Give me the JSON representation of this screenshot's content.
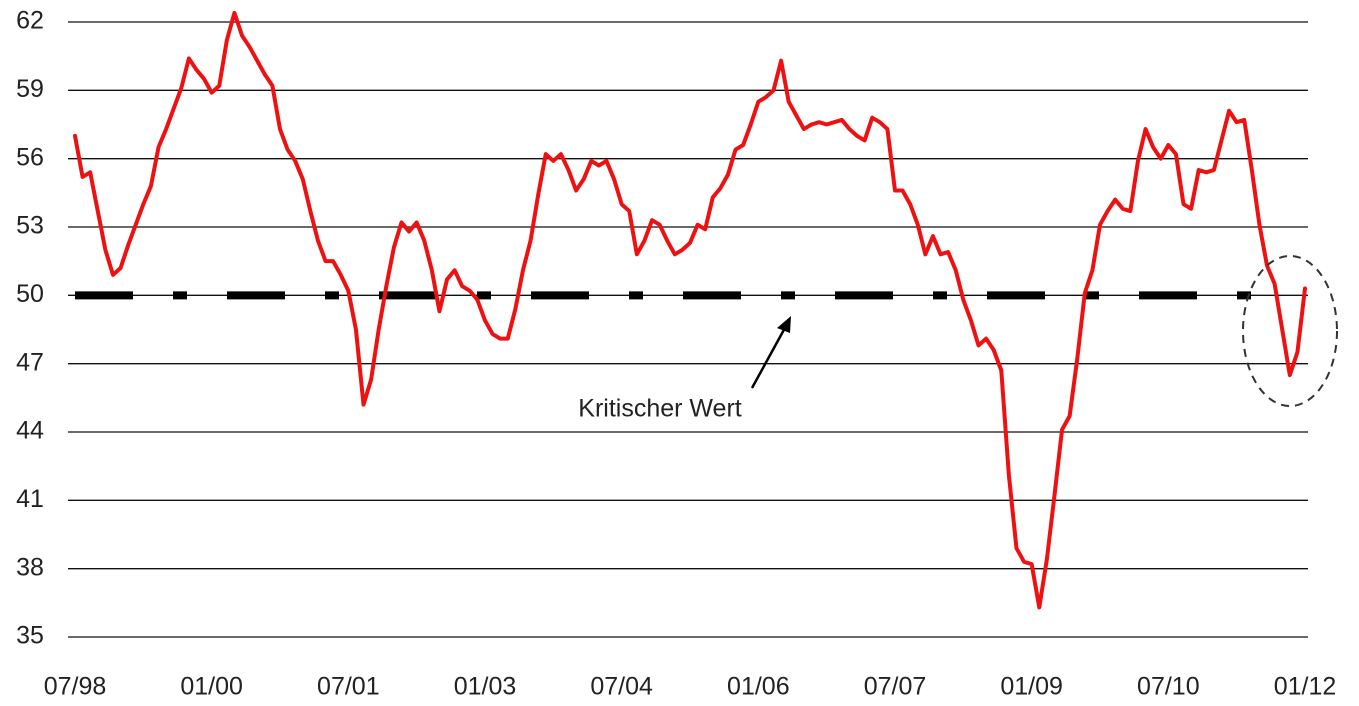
{
  "chart_data": {
    "type": "line",
    "categories": [
      "07/98",
      null,
      null,
      null,
      null,
      null,
      null,
      null,
      null,
      null,
      null,
      null,
      null,
      null,
      null,
      null,
      null,
      null,
      "01/00",
      null,
      null,
      null,
      null,
      null,
      null,
      null,
      null,
      null,
      null,
      null,
      null,
      null,
      null,
      null,
      null,
      null,
      "07/01",
      null,
      null,
      null,
      null,
      null,
      null,
      null,
      null,
      null,
      null,
      null,
      null,
      null,
      null,
      null,
      null,
      null,
      "01/03",
      null,
      null,
      null,
      null,
      null,
      null,
      null,
      null,
      null,
      null,
      null,
      null,
      null,
      null,
      null,
      null,
      null,
      "07/04",
      null,
      null,
      null,
      null,
      null,
      null,
      null,
      null,
      null,
      null,
      null,
      null,
      null,
      null,
      null,
      null,
      null,
      "01/06",
      null,
      null,
      null,
      null,
      null,
      null,
      null,
      null,
      null,
      null,
      null,
      null,
      null,
      null,
      null,
      null,
      null,
      "07/07",
      null,
      null,
      null,
      null,
      null,
      null,
      null,
      null,
      null,
      null,
      null,
      null,
      null,
      null,
      null,
      null,
      null,
      "01/09",
      null,
      null,
      null,
      null,
      null,
      null,
      null,
      null,
      null,
      null,
      null,
      null,
      null,
      null,
      null,
      null,
      null,
      "07/10",
      null,
      null,
      null,
      null,
      null,
      null,
      null,
      null,
      null,
      null,
      null,
      null,
      null,
      null,
      null,
      null,
      null,
      "01/12"
    ],
    "values": [
      57.0,
      55.2,
      55.4,
      53.7,
      52.0,
      50.9,
      51.2,
      52.2,
      53.1,
      54.0,
      54.8,
      56.5,
      57.3,
      58.2,
      59.1,
      60.4,
      59.9,
      59.5,
      58.9,
      59.2,
      61.2,
      62.4,
      61.4,
      60.9,
      60.3,
      59.7,
      59.2,
      57.3,
      56.4,
      55.9,
      55.1,
      53.7,
      52.4,
      51.5,
      51.5,
      50.9,
      50.2,
      48.5,
      45.2,
      46.3,
      48.5,
      50.4,
      52.1,
      53.2,
      52.8,
      53.2,
      52.4,
      51.1,
      49.3,
      50.7,
      51.1,
      50.4,
      50.2,
      49.8,
      48.9,
      48.3,
      48.1,
      48.1,
      49.4,
      51.1,
      52.4,
      54.4,
      56.2,
      55.9,
      56.2,
      55.5,
      54.6,
      55.1,
      55.9,
      55.7,
      55.9,
      55.1,
      54.0,
      53.7,
      51.8,
      52.4,
      53.3,
      53.1,
      52.4,
      51.8,
      52.0,
      52.3,
      53.1,
      52.9,
      54.3,
      54.7,
      55.3,
      56.4,
      56.6,
      57.5,
      58.5,
      58.7,
      59.0,
      60.3,
      58.5,
      57.9,
      57.3,
      57.5,
      57.6,
      57.5,
      57.6,
      57.7,
      57.3,
      57.0,
      56.8,
      57.8,
      57.6,
      57.3,
      54.6,
      54.6,
      54.0,
      53.1,
      51.8,
      52.6,
      51.8,
      51.9,
      51.1,
      49.8,
      48.9,
      47.8,
      48.1,
      47.6,
      46.7,
      42.1,
      38.9,
      38.3,
      38.2,
      36.3,
      38.4,
      41.2,
      44.1,
      44.7,
      47.2,
      50.1,
      51.1,
      53.1,
      53.7,
      54.2,
      53.8,
      53.7,
      55.9,
      57.3,
      56.5,
      56.0,
      56.6,
      56.2,
      54.0,
      53.8,
      55.5,
      55.4,
      55.5,
      56.8,
      58.1,
      57.6,
      57.7,
      55.5,
      53.1,
      51.3,
      50.5,
      48.5,
      46.5,
      47.5,
      50.3
    ],
    "color": "#ee1111",
    "ylim": [
      35,
      62
    ],
    "yticks": [
      35,
      38,
      41,
      44,
      47,
      50,
      53,
      56,
      59,
      62
    ],
    "grid": true,
    "reference_line": {
      "value": 50,
      "color": "#000000"
    },
    "annotation": "Kritischer Wert"
  }
}
